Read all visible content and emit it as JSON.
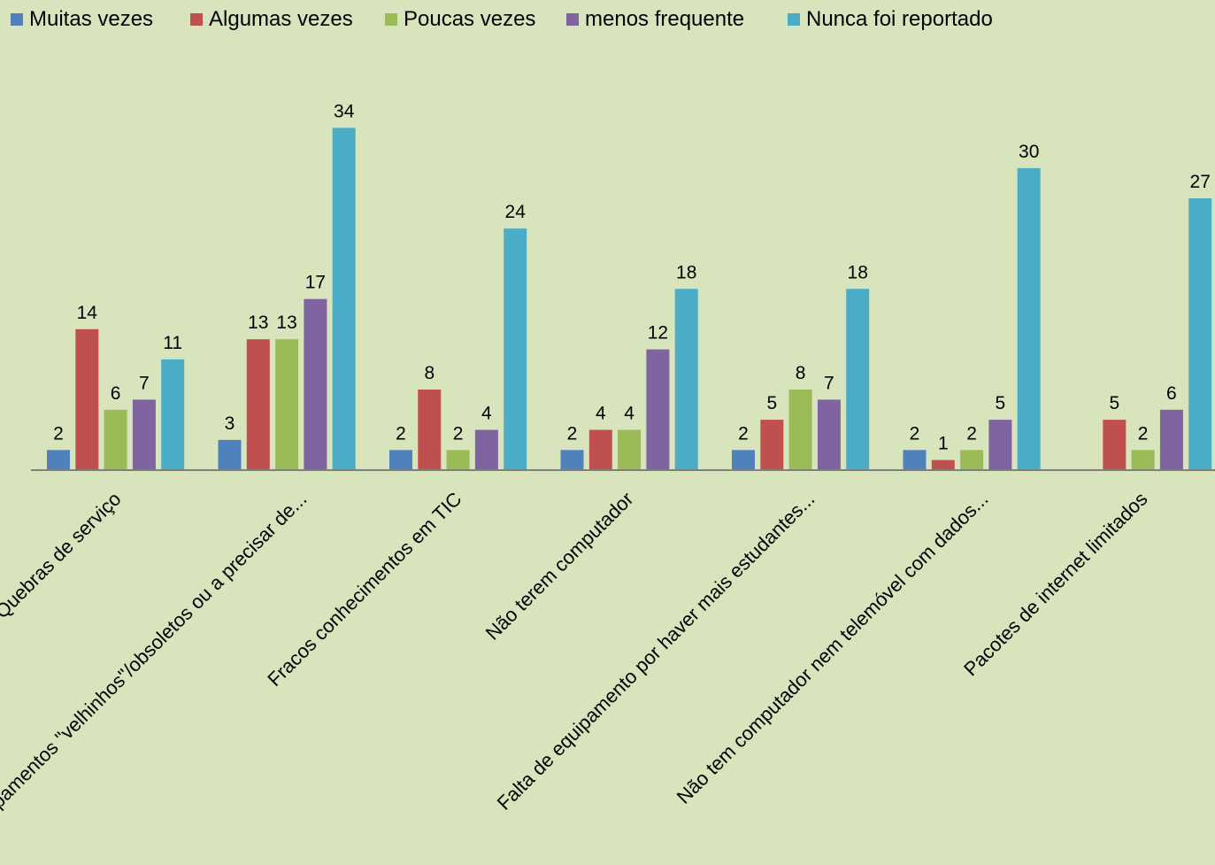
{
  "chart_data": {
    "type": "bar",
    "categories": [
      "Quebras de serviço",
      "Equipamentos \"velhinhos\"/obsoletos ou a precisar de...",
      "Fracos conhecimentos em TIC",
      "Não terem computador",
      "Falta de equipamento por haver mais estudantes...",
      "Não tem computador nem telemóvel com dados...",
      "Pacotes de internet limitados"
    ],
    "series": [
      {
        "name": "Muitas vezes",
        "color": "#4f81bd",
        "values": [
          2,
          3,
          2,
          2,
          2,
          2,
          null
        ]
      },
      {
        "name": "Algumas vezes",
        "color": "#c0504d",
        "values": [
          14,
          13,
          8,
          4,
          5,
          1,
          5
        ]
      },
      {
        "name": "Poucas vezes",
        "color": "#9bbb59",
        "values": [
          6,
          13,
          2,
          4,
          8,
          2,
          2
        ]
      },
      {
        "name": "menos frequente",
        "color": "#8064a2",
        "values": [
          7,
          17,
          4,
          12,
          7,
          5,
          6
        ]
      },
      {
        "name": "Nunca foi reportado",
        "color": "#4bacc6",
        "values": [
          11,
          34,
          24,
          18,
          18,
          30,
          27
        ]
      }
    ],
    "ylim": [
      0,
      34
    ],
    "legend_position": "top",
    "grid": false,
    "background_color": "#d8e4bc"
  }
}
